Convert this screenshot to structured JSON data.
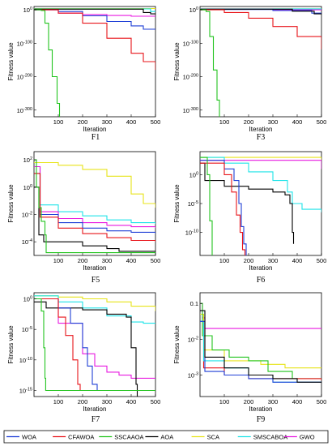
{
  "legend": [
    {
      "name": "WOA",
      "color": "#1f3fd6"
    },
    {
      "name": "CFAWOA",
      "color": "#e8141a"
    },
    {
      "name": "SSCAAOA",
      "color": "#22c41e"
    },
    {
      "name": "AOA",
      "color": "#000000"
    },
    {
      "name": "SCA",
      "color": "#e8e41a"
    },
    {
      "name": "SMSCABOA",
      "color": "#1ee3e8"
    },
    {
      "name": "GWO",
      "color": "#e81ae0"
    }
  ],
  "chart_data": [
    {
      "id": "F1",
      "type": "line",
      "title": "F1",
      "xlabel": "Iteration",
      "ylabel": "Fitness value",
      "yscale": "log",
      "ylim_exp": [
        -320,
        10
      ],
      "xlim": [
        0,
        500
      ],
      "xticks": [
        100,
        200,
        300,
        400,
        500
      ],
      "yticks": [
        {
          "exp": 0,
          "label": "10^0"
        },
        {
          "exp": -100,
          "label": "10^-100"
        },
        {
          "exp": -200,
          "label": "10^-200"
        },
        {
          "exp": -300,
          "label": "10^-300"
        }
      ],
      "series": [
        {
          "name": "SCA",
          "x": [
            0,
            500
          ],
          "y_exp": [
            4,
            2
          ]
        },
        {
          "name": "SMSCABOA",
          "x": [
            0,
            470,
            480,
            500
          ],
          "y_exp": [
            3,
            3,
            -5,
            -5
          ]
        },
        {
          "name": "AOA",
          "x": [
            0,
            450,
            480,
            500
          ],
          "y_exp": [
            2,
            -8,
            -12,
            -12
          ]
        },
        {
          "name": "GWO",
          "x": [
            0,
            100,
            200,
            300,
            400,
            500
          ],
          "y_exp": [
            0,
            -10,
            -14,
            -17,
            -19,
            -20
          ]
        },
        {
          "name": "WOA",
          "x": [
            0,
            100,
            200,
            300,
            400,
            450,
            500
          ],
          "y_exp": [
            0,
            -5,
            -18,
            -35,
            -48,
            -58,
            -58
          ]
        },
        {
          "name": "CFAWOA",
          "x": [
            0,
            100,
            200,
            300,
            400,
            450,
            500
          ],
          "y_exp": [
            0,
            -10,
            -40,
            -85,
            -130,
            -155,
            -180
          ]
        },
        {
          "name": "SSCAAOA",
          "x": [
            0,
            30,
            45,
            60,
            75,
            95,
            105
          ],
          "y_exp": [
            0,
            -2,
            -40,
            -120,
            -200,
            -280,
            -320
          ]
        }
      ]
    },
    {
      "id": "F3",
      "type": "line",
      "title": "F3",
      "xlabel": "Iteration",
      "ylabel": "Fitness value",
      "yscale": "log",
      "ylim_exp": [
        -320,
        10
      ],
      "xlim": [
        0,
        500
      ],
      "xticks": [
        100,
        200,
        300,
        400,
        500
      ],
      "yticks": [
        {
          "exp": 0,
          "label": "10^0"
        },
        {
          "exp": -100,
          "label": "10^-100"
        },
        {
          "exp": -200,
          "label": "10^-200"
        },
        {
          "exp": -300,
          "label": "10^-300"
        }
      ],
      "series": [
        {
          "name": "SCA",
          "x": [
            0,
            500
          ],
          "y_exp": [
            3,
            3
          ]
        },
        {
          "name": "SMSCABOA",
          "x": [
            0,
            500
          ],
          "y_exp": [
            3,
            2
          ]
        },
        {
          "name": "GWO",
          "x": [
            0,
            300,
            500
          ],
          "y_exp": [
            2,
            0,
            -2
          ]
        },
        {
          "name": "WOA",
          "x": [
            0,
            300,
            460,
            500
          ],
          "y_exp": [
            1,
            -2,
            -10,
            -10
          ]
        },
        {
          "name": "AOA",
          "x": [
            0,
            380,
            470,
            500
          ],
          "y_exp": [
            2,
            -4,
            -12,
            -12
          ]
        },
        {
          "name": "CFAWOA",
          "x": [
            0,
            100,
            200,
            300,
            400,
            500
          ],
          "y_exp": [
            0,
            -8,
            -25,
            -50,
            -80,
            -118
          ]
        },
        {
          "name": "SSCAAOA",
          "x": [
            0,
            25,
            40,
            55,
            70,
            80
          ],
          "y_exp": [
            0,
            -5,
            -80,
            -180,
            -270,
            -320
          ]
        }
      ]
    },
    {
      "id": "F5",
      "type": "line",
      "title": "F5",
      "xlabel": "Iteration",
      "ylabel": "Fitness value",
      "yscale": "log",
      "ylim_exp": [
        -5,
        2.6
      ],
      "xlim": [
        0,
        500
      ],
      "xticks": [
        100,
        200,
        300,
        400,
        500
      ],
      "yticks": [
        {
          "exp": 2,
          "label": "10^2"
        },
        {
          "exp": 0,
          "label": "10^0"
        },
        {
          "exp": -2,
          "label": "10^-2"
        },
        {
          "exp": -4,
          "label": "10^-4"
        }
      ],
      "series": [
        {
          "name": "SCA",
          "x": [
            0,
            100,
            200,
            300,
            400,
            450,
            500
          ],
          "y_exp": [
            1.8,
            1.6,
            1.3,
            0.8,
            -0.5,
            -1.2,
            -1.5
          ]
        },
        {
          "name": "SMSCABOA",
          "x": [
            0,
            25,
            100,
            200,
            300,
            400,
            500
          ],
          "y_exp": [
            1.5,
            -1.3,
            -1.8,
            -2.1,
            -2.4,
            -2.6,
            -2.7
          ]
        },
        {
          "name": "GWO",
          "x": [
            0,
            25,
            100,
            200,
            300,
            400,
            500
          ],
          "y_exp": [
            1.5,
            -1.8,
            -2.3,
            -2.6,
            -2.8,
            -2.9,
            -3.0
          ]
        },
        {
          "name": "WOA",
          "x": [
            0,
            25,
            100,
            200,
            300,
            400,
            500
          ],
          "y_exp": [
            1.0,
            -2.0,
            -2.6,
            -3.0,
            -3.2,
            -3.3,
            -3.4
          ]
        },
        {
          "name": "AOA",
          "x": [
            0,
            20,
            40,
            100,
            200,
            300,
            350,
            500
          ],
          "y_exp": [
            0.0,
            -3.5,
            -4.0,
            -4.0,
            -4.3,
            -4.5,
            -4.7,
            -4.7
          ]
        },
        {
          "name": "CFAWOA",
          "x": [
            0,
            25,
            100,
            200,
            300,
            400,
            500
          ],
          "y_exp": [
            1.0,
            -2.2,
            -3.0,
            -3.4,
            -3.7,
            -3.9,
            -4.0
          ]
        },
        {
          "name": "SSCAAOA",
          "x": [
            0,
            10,
            20,
            30,
            45,
            50,
            500
          ],
          "y_exp": [
            2.0,
            0.0,
            -1.5,
            -2.5,
            -3.5,
            -4.8,
            -4.8
          ]
        }
      ]
    },
    {
      "id": "F6",
      "type": "line",
      "title": "F6",
      "xlabel": "Iteration",
      "ylabel": "Fitness value",
      "yscale": "log",
      "ylim_exp": [
        -14,
        4
      ],
      "xlim": [
        0,
        500
      ],
      "xticks": [
        100,
        200,
        300,
        400,
        500
      ],
      "yticks": [
        {
          "exp": 0,
          "label": "10^0"
        },
        {
          "exp": -5,
          "label": "10^-5"
        },
        {
          "exp": -10,
          "label": "10^-10"
        }
      ],
      "series": [
        {
          "name": "SCA",
          "x": [
            0,
            500
          ],
          "y_exp": [
            3.0,
            2.3
          ]
        },
        {
          "name": "GWO",
          "x": [
            0,
            500
          ],
          "y_exp": [
            2.5,
            1.0
          ]
        },
        {
          "name": "SMSCABOA",
          "x": [
            0,
            100,
            200,
            300,
            360,
            380,
            420,
            500
          ],
          "y_exp": [
            3.0,
            2.0,
            0.5,
            -1.0,
            -3.0,
            -5.0,
            -6.0,
            -6.5
          ]
        },
        {
          "name": "AOA",
          "x": [
            0,
            20,
            100,
            200,
            300,
            350,
            370,
            380,
            385
          ],
          "y_exp": [
            2.0,
            -1.0,
            -2.0,
            -2.5,
            -3.0,
            -3.5,
            -5.0,
            -10.0,
            -12.0
          ]
        },
        {
          "name": "WOA",
          "x": [
            0,
            100,
            140,
            160,
            170,
            180,
            190
          ],
          "y_exp": [
            2.5,
            1.0,
            -1.0,
            -5.0,
            -9.0,
            -12.0,
            -14.0
          ]
        },
        {
          "name": "CFAWOA",
          "x": [
            0,
            100,
            130,
            150,
            165,
            175,
            185
          ],
          "y_exp": [
            2.0,
            0.0,
            -3.0,
            -7.0,
            -10.0,
            -13.0,
            -14.0
          ]
        },
        {
          "name": "SSCAAOA",
          "x": [
            0,
            30,
            40,
            50
          ],
          "y_exp": [
            3.0,
            0.0,
            -8.0,
            -14.0
          ]
        }
      ]
    },
    {
      "id": "F7",
      "type": "line",
      "title": "F7",
      "xlabel": "Iteration",
      "ylabel": "Fitness value",
      "yscale": "log",
      "ylim_exp": [
        -16,
        1
      ],
      "xlim": [
        0,
        500
      ],
      "xticks": [
        100,
        200,
        300,
        400,
        500
      ],
      "yticks": [
        {
          "exp": 0,
          "label": "10^0"
        },
        {
          "exp": -5,
          "label": "10^-5"
        },
        {
          "exp": -10,
          "label": "10^-10"
        },
        {
          "exp": -15,
          "label": "10^-15"
        }
      ],
      "series": [
        {
          "name": "SCA",
          "x": [
            0,
            100,
            200,
            300,
            400,
            500
          ],
          "y_exp": [
            0.5,
            0.3,
            0.0,
            -0.5,
            -1.2,
            -2.0
          ]
        },
        {
          "name": "SMSCABOA",
          "x": [
            0,
            100,
            200,
            300,
            400,
            450,
            500
          ],
          "y_exp": [
            0.5,
            -0.5,
            -1.5,
            -2.8,
            -3.8,
            -4.0,
            -4.0
          ]
        },
        {
          "name": "GWO",
          "x": [
            0,
            100,
            200,
            250,
            300,
            350,
            400,
            500
          ],
          "y_exp": [
            0,
            -4,
            -9,
            -11,
            -12,
            -12.5,
            -13,
            -13
          ]
        },
        {
          "name": "AOA",
          "x": [
            0,
            50,
            100,
            200,
            300,
            380,
            400,
            420,
            425
          ],
          "y_exp": [
            -0.5,
            -1.5,
            -1.5,
            -1.8,
            -2.5,
            -3.0,
            -8.0,
            -14.0,
            -16.0
          ]
        },
        {
          "name": "WOA",
          "x": [
            0,
            100,
            150,
            200,
            220,
            240,
            260
          ],
          "y_exp": [
            0,
            -1.5,
            -4.0,
            -8.0,
            -11.0,
            -14.0,
            -15.0
          ]
        },
        {
          "name": "CFAWOA",
          "x": [
            0,
            100,
            130,
            160,
            180,
            190,
            200,
            500
          ],
          "y_exp": [
            0,
            -3.0,
            -6.0,
            -10.0,
            -14.0,
            -15.0,
            -15.0,
            -15.0
          ]
        },
        {
          "name": "SSCAAOA",
          "x": [
            0,
            30,
            40,
            45,
            48,
            500
          ],
          "y_exp": [
            0,
            -2.0,
            -8.0,
            -13.0,
            -15.0,
            -15.0
          ]
        }
      ]
    },
    {
      "id": "F9",
      "type": "line",
      "title": "F9",
      "xlabel": "Iteration",
      "ylabel": "Fitness value",
      "yscale": "log",
      "ylim_exp": [
        -3.6,
        -0.7
      ],
      "xlim": [
        0,
        500
      ],
      "xticks": [
        100,
        200,
        300,
        400,
        500
      ],
      "yticks": [
        {
          "exp": -1,
          "label": "0.1"
        },
        {
          "exp": -2,
          "label": "10^-2"
        },
        {
          "exp": -3,
          "label": "10^-3"
        }
      ],
      "series": [
        {
          "name": "GWO",
          "x": [
            0,
            10,
            20,
            500
          ],
          "y_exp": [
            -1.0,
            -1.4,
            -1.7,
            -1.7
          ]
        },
        {
          "name": "SCA",
          "x": [
            0,
            15,
            100,
            250,
            350,
            500
          ],
          "y_exp": [
            -1.3,
            -2.3,
            -2.6,
            -2.7,
            -2.8,
            -2.8
          ]
        },
        {
          "name": "SSCAAOA",
          "x": [
            0,
            10,
            50,
            120,
            200,
            280,
            380,
            500
          ],
          "y_exp": [
            -1.0,
            -1.9,
            -2.3,
            -2.5,
            -2.6,
            -2.9,
            -3.1,
            -3.1
          ]
        },
        {
          "name": "CFAWOA",
          "x": [
            0,
            15,
            100,
            200,
            300,
            500
          ],
          "y_exp": [
            -1.5,
            -2.8,
            -3.0,
            -3.1,
            -3.1,
            -3.15
          ]
        },
        {
          "name": "SMSCABOA",
          "x": [
            0,
            15,
            100,
            200,
            300,
            500
          ],
          "y_exp": [
            -1.5,
            -2.6,
            -2.8,
            -3.0,
            -3.2,
            -3.2
          ]
        },
        {
          "name": "WOA",
          "x": [
            0,
            20,
            100,
            200,
            300,
            500
          ],
          "y_exp": [
            -1.5,
            -2.9,
            -3.0,
            -3.1,
            -3.2,
            -3.2
          ]
        },
        {
          "name": "AOA",
          "x": [
            0,
            20,
            100,
            200,
            300,
            400,
            500
          ],
          "y_exp": [
            -1.2,
            -2.5,
            -2.8,
            -3.0,
            -3.1,
            -3.2,
            -3.2
          ]
        }
      ]
    }
  ]
}
